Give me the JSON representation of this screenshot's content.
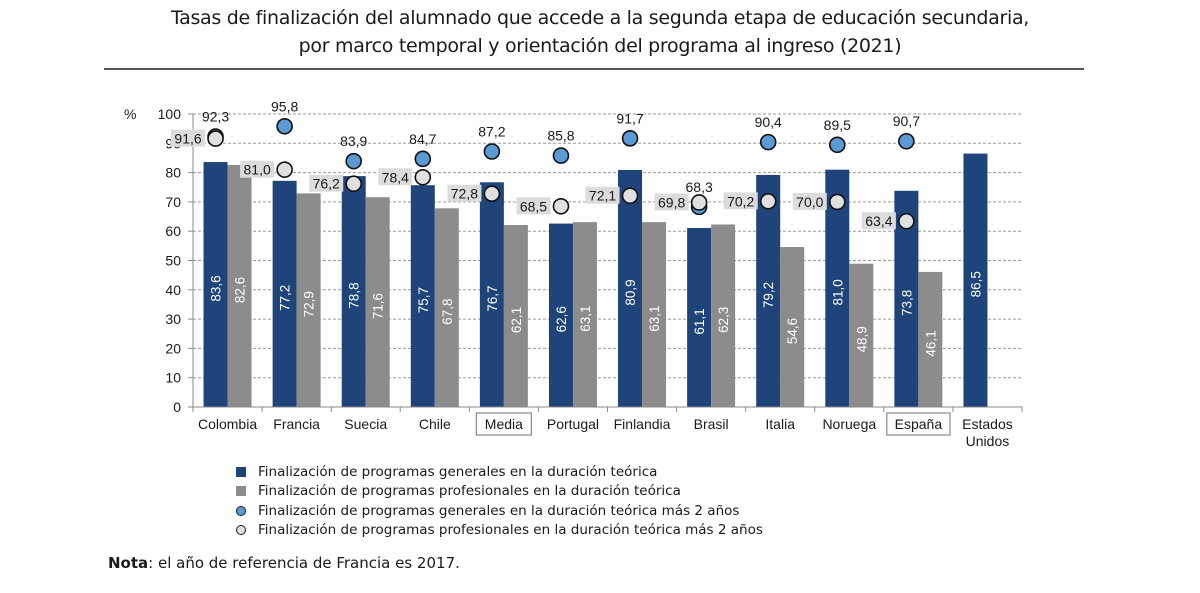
{
  "header": {
    "title_line1": "Tasas de finalización del alumnado que accede a la segunda etapa de educación secundaria,",
    "title_line2": "por marco temporal y orientación del programa al ingreso (2021)"
  },
  "note": {
    "label": "Nota",
    "text": ": el año de referencia de Francia es 2017."
  },
  "colors": {
    "general_bar": "#1f4479",
    "professional_bar": "#8c8c8c",
    "general_marker": "#5b9bd5",
    "professional_marker": "#e0e0e0",
    "label_bg": "#dcdcdc",
    "grid": "#9a9a9a"
  },
  "chart_data": {
    "type": "bar",
    "title": "Tasas de finalización del alumnado que accede a la segunda etapa de educación secundaria, por marco temporal y orientación del programa al ingreso (2021)",
    "ylabel": "%",
    "xlabel": "",
    "ylim": [
      0,
      100
    ],
    "yticks": [
      0,
      10,
      20,
      30,
      40,
      50,
      60,
      70,
      80,
      90,
      100
    ],
    "grid": true,
    "legend_position": "bottom",
    "categories": [
      "Colombia",
      "Francia",
      "Suecia",
      "Chile",
      "Media",
      "Portugal",
      "Finlandia",
      "Brasil",
      "Italia",
      "Noruega",
      "España",
      "Estados Unidos"
    ],
    "boxed_categories": [
      "Media",
      "España"
    ],
    "series": [
      {
        "name": "Finalización de programas generales en la duración teórica",
        "kind": "bar",
        "values": [
          83.6,
          77.2,
          78.8,
          75.7,
          76.7,
          62.6,
          80.9,
          61.1,
          79.2,
          81.0,
          73.8,
          86.5
        ],
        "labels": [
          "83,6",
          "77,2",
          "78,8",
          "75,7",
          "76,7",
          "62,6",
          "80,9",
          "61,1",
          "79,2",
          "81,0",
          "73,8",
          "86,5"
        ]
      },
      {
        "name": "Finalización de programas profesionales en la duración teórica",
        "kind": "bar",
        "values": [
          82.6,
          72.9,
          71.6,
          67.8,
          62.1,
          63.1,
          63.1,
          62.3,
          54.6,
          48.9,
          46.1,
          null
        ],
        "labels": [
          "82,6",
          "72,9",
          "71,6",
          "67,8",
          "62,1",
          "63,1",
          "63,1",
          "62,3",
          "54,6",
          "48,9",
          "46,1",
          null
        ]
      },
      {
        "name": "Finalización de programas generales en la duración teórica más 2 años",
        "kind": "marker",
        "values": [
          92.3,
          95.8,
          83.9,
          84.7,
          87.2,
          85.8,
          91.7,
          68.3,
          90.4,
          89.5,
          90.7,
          null
        ],
        "labels": [
          "92,3",
          "95,8",
          "83,9",
          "84,7",
          "87,2",
          "85,8",
          "91,7",
          "68,3",
          "90,4",
          "89,5",
          "90,7",
          null
        ]
      },
      {
        "name": "Finalización de programas profesionales en la duración teórica más 2 años",
        "kind": "marker",
        "values": [
          91.6,
          81.0,
          76.2,
          78.4,
          72.8,
          68.5,
          72.1,
          69.8,
          70.2,
          70.0,
          63.4,
          null
        ],
        "labels": [
          "91,6",
          "81,0",
          "76,2",
          "78,4",
          "72,8",
          "68,5",
          "72,1",
          "69,8",
          "70,2",
          "70,0",
          "63,4",
          null
        ]
      }
    ]
  }
}
